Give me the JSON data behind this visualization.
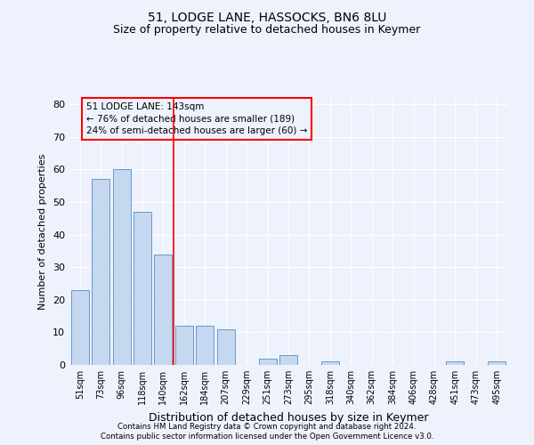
{
  "title1": "51, LODGE LANE, HASSOCKS, BN6 8LU",
  "title2": "Size of property relative to detached houses in Keymer",
  "xlabel": "Distribution of detached houses by size in Keymer",
  "ylabel": "Number of detached properties",
  "categories": [
    "51sqm",
    "73sqm",
    "96sqm",
    "118sqm",
    "140sqm",
    "162sqm",
    "184sqm",
    "207sqm",
    "229sqm",
    "251sqm",
    "273sqm",
    "295sqm",
    "318sqm",
    "340sqm",
    "362sqm",
    "384sqm",
    "406sqm",
    "428sqm",
    "451sqm",
    "473sqm",
    "495sqm"
  ],
  "values": [
    23,
    57,
    60,
    47,
    34,
    12,
    12,
    11,
    0,
    2,
    3,
    0,
    1,
    0,
    0,
    0,
    0,
    0,
    1,
    0,
    1
  ],
  "bar_color": "#c5d8f0",
  "bar_edge_color": "#6699cc",
  "red_line_x": 4.5,
  "annotation_line1": "51 LODGE LANE: 143sqm",
  "annotation_line2": "← 76% of detached houses are smaller (189)",
  "annotation_line3": "24% of semi-detached houses are larger (60) →",
  "ylim": [
    0,
    82
  ],
  "yticks": [
    0,
    10,
    20,
    30,
    40,
    50,
    60,
    70,
    80
  ],
  "footer1": "Contains HM Land Registry data © Crown copyright and database right 2024.",
  "footer2": "Contains public sector information licensed under the Open Government Licence v3.0.",
  "background_color": "#eef2fc",
  "grid_color": "#ffffff",
  "title_fontsize": 10,
  "subtitle_fontsize": 9,
  "axis_label_fontsize": 8,
  "tick_fontsize": 7,
  "bar_width": 0.85
}
